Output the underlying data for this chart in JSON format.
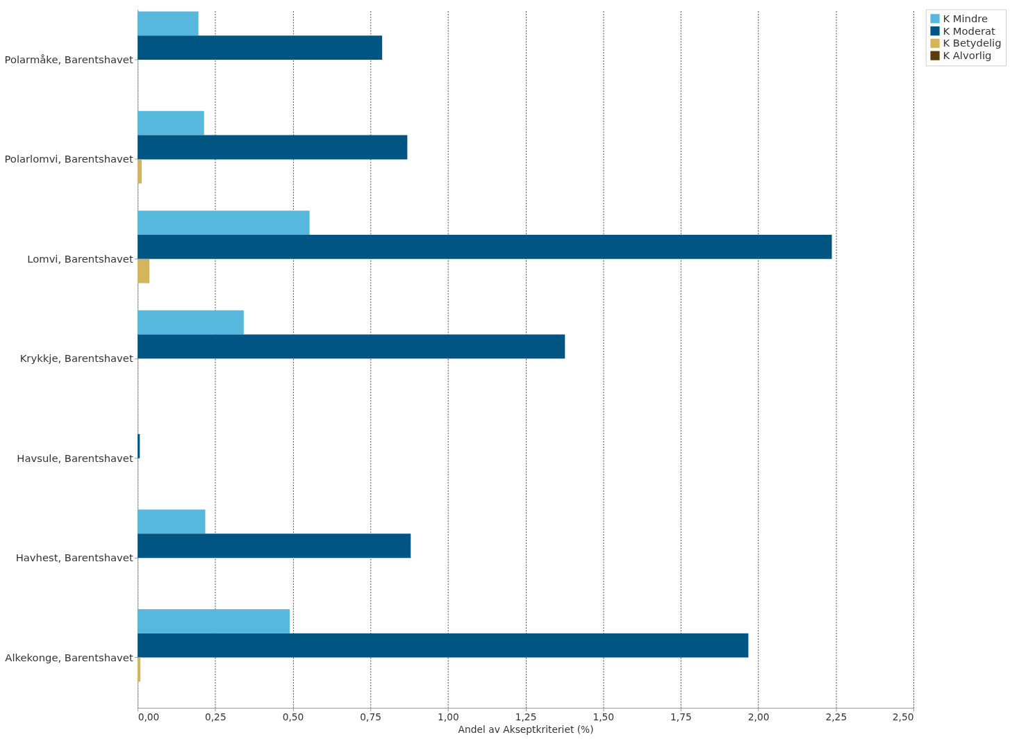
{
  "chart_data": {
    "type": "bar",
    "orientation": "horizontal",
    "xlabel": "Andel av Akseptkriteriet (%)",
    "categories": [
      "Polarmåke, Barentshavet",
      "Polarlomvi, Barentshavet",
      "Lomvi, Barentshavet",
      "Krykkje, Barentshavet",
      "Havsule, Barentshavet",
      "Havhest, Barentshavet",
      "Alkekonge, Barentshavet"
    ],
    "series": [
      {
        "name": "K Mindre",
        "color": "#56b8dc",
        "values": [
          0.196,
          0.214,
          0.554,
          0.342,
          null,
          0.218,
          0.49
        ]
      },
      {
        "name": "K Moderat",
        "color": "#005582",
        "values": [
          0.788,
          0.869,
          2.237,
          1.377,
          0.007,
          0.88,
          1.968
        ]
      },
      {
        "name": "K Betydelig",
        "color": "#d4b55e",
        "values": [
          null,
          0.013,
          0.038,
          null,
          null,
          null,
          0.009
        ]
      },
      {
        "name": "K Alvorlig",
        "color": "#5a3e0a",
        "values": [
          null,
          null,
          null,
          null,
          null,
          null,
          null
        ]
      }
    ],
    "xlim": [
      0,
      2.5
    ],
    "xticks": [
      {
        "value": 0,
        "label": "0,00"
      },
      {
        "value": 0.25,
        "label": "0,25"
      },
      {
        "value": 0.5,
        "label": "0,50"
      },
      {
        "value": 0.75,
        "label": "0,75"
      },
      {
        "value": 1,
        "label": "1,00"
      },
      {
        "value": 1.25,
        "label": "1,25"
      },
      {
        "value": 1.5,
        "label": "1,50"
      },
      {
        "value": 1.75,
        "label": "1,75"
      },
      {
        "value": 2,
        "label": "2,00"
      },
      {
        "value": 2.25,
        "label": "2,25"
      },
      {
        "value": 2.5,
        "label": "2,50"
      }
    ],
    "grid": "x",
    "legend": "right"
  }
}
